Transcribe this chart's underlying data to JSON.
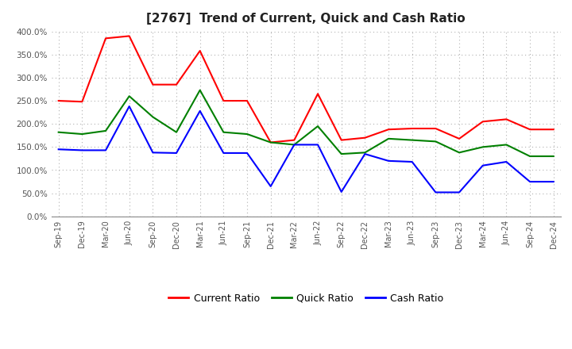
{
  "title": "[2767]  Trend of Current, Quick and Cash Ratio",
  "x_labels": [
    "Sep-19",
    "Dec-19",
    "Mar-20",
    "Jun-20",
    "Sep-20",
    "Dec-20",
    "Mar-21",
    "Jun-21",
    "Sep-21",
    "Dec-21",
    "Mar-22",
    "Jun-22",
    "Sep-22",
    "Dec-22",
    "Mar-23",
    "Jun-23",
    "Sep-23",
    "Dec-23",
    "Mar-24",
    "Jun-24",
    "Sep-24",
    "Dec-24"
  ],
  "current_ratio": [
    250,
    248,
    385,
    390,
    285,
    285,
    358,
    250,
    250,
    160,
    165,
    265,
    165,
    170,
    188,
    190,
    190,
    168,
    205,
    210,
    188,
    188
  ],
  "quick_ratio": [
    182,
    178,
    185,
    260,
    215,
    182,
    273,
    182,
    178,
    160,
    155,
    195,
    135,
    138,
    168,
    165,
    162,
    138,
    150,
    155,
    130,
    130
  ],
  "cash_ratio": [
    145,
    143,
    143,
    238,
    138,
    137,
    228,
    137,
    137,
    65,
    155,
    155,
    53,
    135,
    120,
    118,
    52,
    52,
    110,
    118,
    75,
    75
  ],
  "ylim": [
    0,
    400
  ],
  "yticks": [
    0,
    50,
    100,
    150,
    200,
    250,
    300,
    350,
    400
  ],
  "line_colors": {
    "current": "#ff0000",
    "quick": "#008000",
    "cash": "#0000ff"
  },
  "legend_labels": [
    "Current Ratio",
    "Quick Ratio",
    "Cash Ratio"
  ],
  "background_color": "#ffffff",
  "grid_color": "#b0b0b0"
}
